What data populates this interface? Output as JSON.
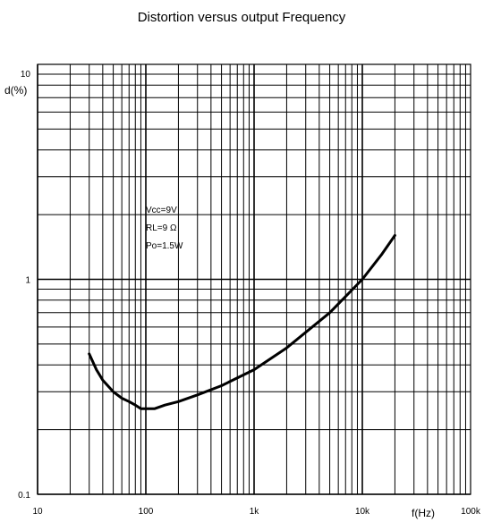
{
  "chart_data": {
    "type": "line",
    "title": "Distortion versus output Frequency",
    "xlabel": "f(Hz)",
    "ylabel": "d(%)",
    "xscale": "log",
    "yscale": "log",
    "xlim": [
      10,
      100000
    ],
    "ylim": [
      0.1,
      10
    ],
    "grid": true,
    "x_ticks": [
      "10",
      "100",
      "1k",
      "10k",
      "100k"
    ],
    "y_ticks": [
      "10",
      "1",
      "0.1"
    ],
    "annotations": [
      "Vcc=9V",
      "RL=9 Ω",
      "Po=1.5W"
    ],
    "series": [
      {
        "x": [
          30,
          35,
          40,
          50,
          60,
          70,
          80,
          90,
          100,
          120,
          150,
          200,
          300,
          500,
          1000,
          2000,
          5000,
          10000,
          15000,
          20000
        ],
        "y": [
          0.45,
          0.38,
          0.34,
          0.3,
          0.28,
          0.27,
          0.26,
          0.25,
          0.25,
          0.25,
          0.26,
          0.27,
          0.29,
          0.32,
          0.38,
          0.48,
          0.7,
          1.0,
          1.3,
          1.6
        ]
      }
    ]
  }
}
